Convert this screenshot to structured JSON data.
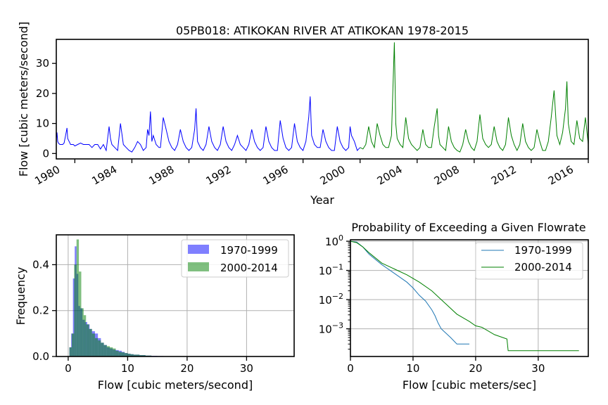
{
  "chart_data": [
    {
      "type": "line",
      "title": "05PB018: ATIKOKAN RIVER AT ATIKOKAN 1978-2015",
      "xlabel": "Year",
      "ylabel": "Flow [cubic meters/second]",
      "xlim": [
        1978.7,
        2016.0
      ],
      "ylim": [
        -1.8,
        38
      ],
      "x_ticks": [
        "1980",
        "1984",
        "1988",
        "1992",
        "1996",
        "2000",
        "2004",
        "2008",
        "2012",
        "2016"
      ],
      "y_ticks": [
        "0",
        "10",
        "20",
        "30"
      ],
      "grid": false,
      "series": [
        {
          "color": "#0000ff",
          "x": [
            1978.7,
            1978.75,
            1978.8,
            1978.85,
            1978.95,
            1979.05,
            1979.15,
            1979.25,
            1979.35,
            1979.45,
            1979.5,
            1979.6,
            1979.7,
            1979.8,
            1979.9,
            1980.0,
            1980.2,
            1980.4,
            1980.6,
            1980.8,
            1981.0,
            1981.2,
            1981.4,
            1981.6,
            1981.8,
            1982.0,
            1982.2,
            1982.4,
            1982.5,
            1982.6,
            1982.8,
            1983.0,
            1983.2,
            1983.4,
            1983.6,
            1983.8,
            1984.0,
            1984.2,
            1984.4,
            1984.6,
            1984.8,
            1985.0,
            1985.1,
            1985.2,
            1985.3,
            1985.4,
            1985.5,
            1985.7,
            1985.9,
            1986.0,
            1986.2,
            1986.4,
            1986.6,
            1986.8,
            1987.0,
            1987.2,
            1987.4,
            1987.6,
            1987.8,
            1988.0,
            1988.2,
            1988.4,
            1988.5,
            1988.6,
            1988.8,
            1989.0,
            1989.2,
            1989.4,
            1989.6,
            1989.8,
            1990.0,
            1990.2,
            1990.4,
            1990.6,
            1990.8,
            1991.0,
            1991.2,
            1991.4,
            1991.6,
            1991.8,
            1992.0,
            1992.2,
            1992.4,
            1992.6,
            1992.8,
            1993.0,
            1993.2,
            1993.4,
            1993.6,
            1993.8,
            1994.0,
            1994.2,
            1994.4,
            1994.6,
            1994.8,
            1995.0,
            1995.2,
            1995.4,
            1995.6,
            1995.8,
            1996.0,
            1996.2,
            1996.3,
            1996.4,
            1996.5,
            1996.6,
            1996.8,
            1997.0,
            1997.2,
            1997.4,
            1997.6,
            1997.8,
            1998.0,
            1998.2,
            1998.4,
            1998.6,
            1998.8,
            1999.0,
            1999.2,
            1999.3,
            1999.4,
            1999.6,
            1999.8,
            2000.0
          ],
          "y": [
            5,
            7,
            4,
            3.5,
            3,
            3,
            3,
            3.5,
            6,
            8.5,
            5,
            4,
            3,
            3,
            3,
            2.5,
            3,
            3.5,
            3,
            3,
            3,
            2,
            3,
            3,
            1.5,
            3,
            1,
            9,
            5,
            3,
            2,
            1,
            10,
            3,
            2,
            1,
            0.5,
            2,
            4,
            3,
            1,
            2,
            8,
            6,
            14,
            4,
            6,
            3,
            2,
            2,
            12,
            8,
            4,
            2,
            1,
            3,
            8,
            4,
            2,
            1,
            2,
            8,
            15,
            4,
            2,
            1,
            3,
            9,
            4,
            2,
            1,
            3,
            9,
            4,
            2,
            1,
            3,
            6,
            3,
            2,
            1,
            3,
            8,
            4,
            2,
            1,
            2,
            9,
            4,
            2,
            1,
            1,
            11,
            5,
            2,
            1,
            2,
            10,
            4,
            2,
            1,
            4,
            8,
            12,
            19,
            6,
            3,
            2,
            2,
            8,
            4,
            2,
            1,
            1,
            9,
            4,
            2,
            1,
            2,
            9,
            6,
            4,
            1,
            2
          ]
        },
        {
          "color": "#008000",
          "x": [
            2000.0,
            2000.2,
            2000.4,
            2000.6,
            2000.8,
            2001.0,
            2001.2,
            2001.4,
            2001.6,
            2001.8,
            2002.0,
            2002.2,
            2002.4,
            2002.5,
            2002.6,
            2002.8,
            2003.0,
            2003.2,
            2003.4,
            2003.6,
            2003.8,
            2004.0,
            2004.2,
            2004.4,
            2004.6,
            2004.8,
            2005.0,
            2005.2,
            2005.4,
            2005.5,
            2005.6,
            2005.8,
            2006.0,
            2006.2,
            2006.4,
            2006.6,
            2006.8,
            2007.0,
            2007.2,
            2007.4,
            2007.6,
            2007.8,
            2008.0,
            2008.2,
            2008.4,
            2008.6,
            2008.8,
            2009.0,
            2009.2,
            2009.4,
            2009.6,
            2009.8,
            2010.0,
            2010.2,
            2010.4,
            2010.6,
            2010.8,
            2011.0,
            2011.2,
            2011.4,
            2011.6,
            2011.8,
            2012.0,
            2012.2,
            2012.4,
            2012.6,
            2012.8,
            2013.0,
            2013.2,
            2013.4,
            2013.6,
            2013.8,
            2014.0,
            2014.2,
            2014.4,
            2014.5,
            2014.6,
            2014.8,
            2015.0,
            2015.2,
            2015.4,
            2015.6,
            2015.8,
            2016.0
          ],
          "y": [
            2,
            1.5,
            3,
            9,
            4,
            2,
            10,
            6,
            3,
            2,
            2,
            6,
            37,
            10,
            5,
            3,
            2,
            12,
            5,
            3,
            2,
            1,
            2,
            8,
            3,
            2,
            2,
            9,
            15,
            6,
            3,
            2,
            1,
            9,
            4,
            2,
            1,
            0.5,
            3,
            8,
            4,
            2,
            1,
            4,
            13,
            5,
            3,
            2,
            3,
            9,
            4,
            2,
            1,
            3,
            12,
            6,
            3,
            1,
            3,
            10,
            4,
            2,
            1,
            2,
            8,
            4,
            1,
            1,
            4,
            12,
            21,
            6,
            3,
            7,
            15,
            24,
            10,
            4,
            3,
            11,
            5,
            4,
            12,
            3
          ]
        }
      ]
    },
    {
      "type": "bar",
      "subtype": "histogram",
      "xlabel": "Flow [cubic meters/second]",
      "ylabel": "Frequency",
      "xlim": [
        -2,
        38
      ],
      "ylim": [
        0,
        0.53
      ],
      "x_ticks": [
        "0",
        "10",
        "20",
        "30"
      ],
      "y_ticks": [
        "0.0",
        "0.2",
        "0.4"
      ],
      "grid": true,
      "legend": "top-right",
      "series": [
        {
          "name": "1970-1999",
          "color": "#0000ff",
          "bin_edges": [
            0.2,
            0.5,
            0.8,
            1.1,
            1.4,
            1.7,
            2.0,
            2.4,
            2.8,
            3.2,
            3.6,
            4.0,
            4.5,
            5.0,
            5.5,
            6.0,
            6.5,
            7.0,
            7.5,
            8.0,
            8.5,
            9.0,
            9.5,
            10.0,
            10.5,
            11.0,
            12.0,
            13.0,
            14.0,
            15.0,
            16.0,
            17.0,
            18.0,
            19.0
          ],
          "values": [
            0.04,
            0.1,
            0.34,
            0.48,
            0.36,
            0.22,
            0.21,
            0.16,
            0.15,
            0.14,
            0.12,
            0.11,
            0.1,
            0.08,
            0.06,
            0.05,
            0.04,
            0.035,
            0.03,
            0.028,
            0.025,
            0.02,
            0.015,
            0.012,
            0.01,
            0.008,
            0.006,
            0.004,
            0.003,
            0.002,
            0.0015,
            0.001,
            0.0008
          ]
        },
        {
          "name": "2000-2014",
          "color": "#008000",
          "bin_edges": [
            0.2,
            0.6,
            1.0,
            1.4,
            1.8,
            2.2,
            2.6,
            3.0,
            3.5,
            4.0,
            4.5,
            5.0,
            5.5,
            6.0,
            6.5,
            7.0,
            7.5,
            8.0,
            8.5,
            9.0,
            9.5,
            10.0,
            10.5,
            11.0,
            12.0,
            13.0,
            14.0
          ],
          "values": [
            0.04,
            0.1,
            0.4,
            0.51,
            0.37,
            0.21,
            0.18,
            0.14,
            0.12,
            0.1,
            0.08,
            0.07,
            0.06,
            0.05,
            0.045,
            0.04,
            0.035,
            0.025,
            0.02,
            0.018,
            0.015,
            0.012,
            0.01,
            0.008,
            0.006,
            0.004
          ]
        }
      ]
    },
    {
      "type": "line",
      "title": "Probability of Exceeding a Given Flowrate",
      "xlabel": "Flow [cubic meters/sec]",
      "scale_y": "log",
      "xlim": [
        0,
        38
      ],
      "ylim_log10": [
        -3.95,
        0.05
      ],
      "x_ticks": [
        "0",
        "10",
        "20",
        "30"
      ],
      "y_ticks": [
        {
          "base": "10",
          "exp": "0",
          "value": 0
        },
        {
          "base": "10",
          "exp": "−1",
          "value": -1
        },
        {
          "base": "10",
          "exp": "−2",
          "value": -2
        },
        {
          "base": "10",
          "exp": "−3",
          "value": -3
        }
      ],
      "grid": true,
      "legend": "top-right",
      "series": [
        {
          "name": "1970-1999",
          "color": "#1f77b4",
          "x": [
            0,
            1,
            2,
            3,
            5,
            7,
            9,
            10,
            11,
            12,
            13,
            13.5,
            14,
            14.5,
            15,
            16,
            17,
            19
          ],
          "log10_y": [
            0,
            -0.03,
            -0.2,
            -0.45,
            -0.8,
            -1.1,
            -1.4,
            -1.6,
            -1.85,
            -2.05,
            -2.35,
            -2.55,
            -2.8,
            -3.0,
            -3.1,
            -3.3,
            -3.52,
            -3.52
          ]
        },
        {
          "name": "2000-2014",
          "color": "#008000",
          "x": [
            0,
            1,
            2,
            3,
            5,
            7,
            9,
            11,
            13,
            15,
            17,
            19,
            20,
            21,
            23,
            25,
            25.2,
            30,
            36.5
          ],
          "log10_y": [
            0,
            -0.05,
            -0.2,
            -0.4,
            -0.75,
            -0.95,
            -1.15,
            -1.4,
            -1.7,
            -2.1,
            -2.5,
            -2.75,
            -2.9,
            -2.95,
            -3.2,
            -3.35,
            -3.75,
            -3.75,
            -3.75
          ]
        }
      ]
    }
  ]
}
